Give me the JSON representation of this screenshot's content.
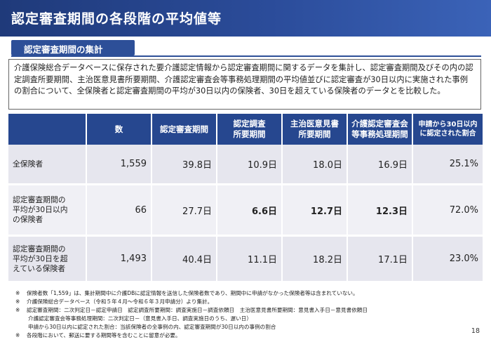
{
  "title": "認定審査期間の各段階の平均値等",
  "section_label": "認定審査期間の集計",
  "description": "介護保険総合データベースに保存された要介護認定情報から認定審査期間に関するデータを集計し、認定審査期間及びその内の認定調査所要期間、主治医意見書所要期間、介護認定審査会等事務処理期間の平均値並びに認定審査が30日以内に実施された事例の割合について、全保険者と認定審査期間の平均が30日以内の保険者、30日を超えている保険者のデータとを比較した。",
  "table": {
    "headers": [
      "数",
      "認定審査期間",
      "認定調査\n所要期間",
      "主治医意見書\n所要期間",
      "介護認定審査会\n等事務処理期間",
      "申請から30日以内\nに認定された割合"
    ],
    "rows": [
      {
        "label": "全保険者",
        "cells": [
          "1,559",
          "39.8日",
          "10.9日",
          "18.0日",
          "16.9日",
          "25.1%"
        ]
      },
      {
        "label": "認定審査期間の\n平均が30日以内\nの保険者",
        "cells": [
          "66",
          "27.7日",
          "6.6日",
          "12.7日",
          "12.3日",
          "72.0%"
        ]
      },
      {
        "label": "認定審査期間の\n平均が30日を超\nえている保険者",
        "cells": [
          "1,493",
          "40.4日",
          "11.1日",
          "18.2日",
          "17.1日",
          "23.0%"
        ]
      }
    ]
  },
  "notes": [
    {
      "mark": "※",
      "text": "保険者数「1,559」は、集計期間中に介護DBに認定情報を送信した保険者数であり、期間中に申請がなかった保険者等は含まれていない。"
    },
    {
      "mark": "※",
      "text": "介護保険総合データベース（令和５年４月～令和６年３月申請分）より集計。"
    },
    {
      "mark": "※",
      "text": "認定審査期間：二次判定日－認定申請日　認定調査所要期間：調査実施日－調査依頼日　主治医意見書所要期間：意見書入手日－意見書依頼日"
    },
    {
      "mark": "",
      "text": "介護認定審査会等事務処理期間：二次判定日－（意見書入手日、調査実施日のうち、遅い日）"
    },
    {
      "mark": "",
      "text": "申請から30日以内に認定された割合：当該保険者の全事例の内、認定審査期間が30日以内の事例の割合"
    },
    {
      "mark": "※",
      "text": "各段階において、郵送に要する期間等を含むことに留意が必要。"
    }
  ],
  "page_number": "18"
}
